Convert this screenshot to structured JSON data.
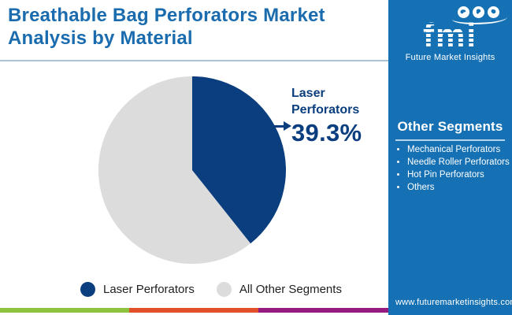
{
  "header": {
    "title_lines": [
      "Breathable Bag Perforators Market",
      "Analysis by Material"
    ],
    "title_color": "#1a6cae"
  },
  "logo": {
    "brand": "fmi",
    "caption": "Future Market Insights",
    "icon_names": [
      "globe-americas-icon",
      "globe-europe-icon",
      "globe-asia-icon"
    ],
    "panel_color": "#1571b3"
  },
  "sidebar": {
    "heading": "Other Segments",
    "items": [
      "Mechanical Perforators",
      "Needle Roller Perforators",
      "Hot Pin Perforators",
      "Others"
    ],
    "website": "www.futuremarketinsights.com"
  },
  "chart_data": {
    "type": "pie",
    "labels": [
      "Laser Perforators",
      "All Other Segments"
    ],
    "values": [
      39.3,
      60.7
    ],
    "colors": [
      "#0a3e7f",
      "#dcdcdc"
    ],
    "start_angle_deg": 0,
    "direction": "clockwise",
    "title": "Breathable Bag Perforators Market Analysis by Material",
    "annotation": {
      "label": "Laser Perforators",
      "value_text": "39.3%"
    },
    "legend_position": "bottom"
  },
  "callout": {
    "label_lines": [
      "Laser",
      "Perforators"
    ],
    "value": "39.3%",
    "color": "#0a3e7f"
  },
  "legend": [
    {
      "label": "Laser Perforators",
      "color": "#0a3e7f"
    },
    {
      "label": "All Other Segments",
      "color": "#dcdcdc"
    }
  ],
  "footer_strip": {
    "colors": [
      "#8cc23e",
      "#e0512a",
      "#951b80"
    ]
  },
  "misc_colors": {
    "divider": "#aac3d6",
    "sidebar_underline": "#b8d4e8"
  }
}
